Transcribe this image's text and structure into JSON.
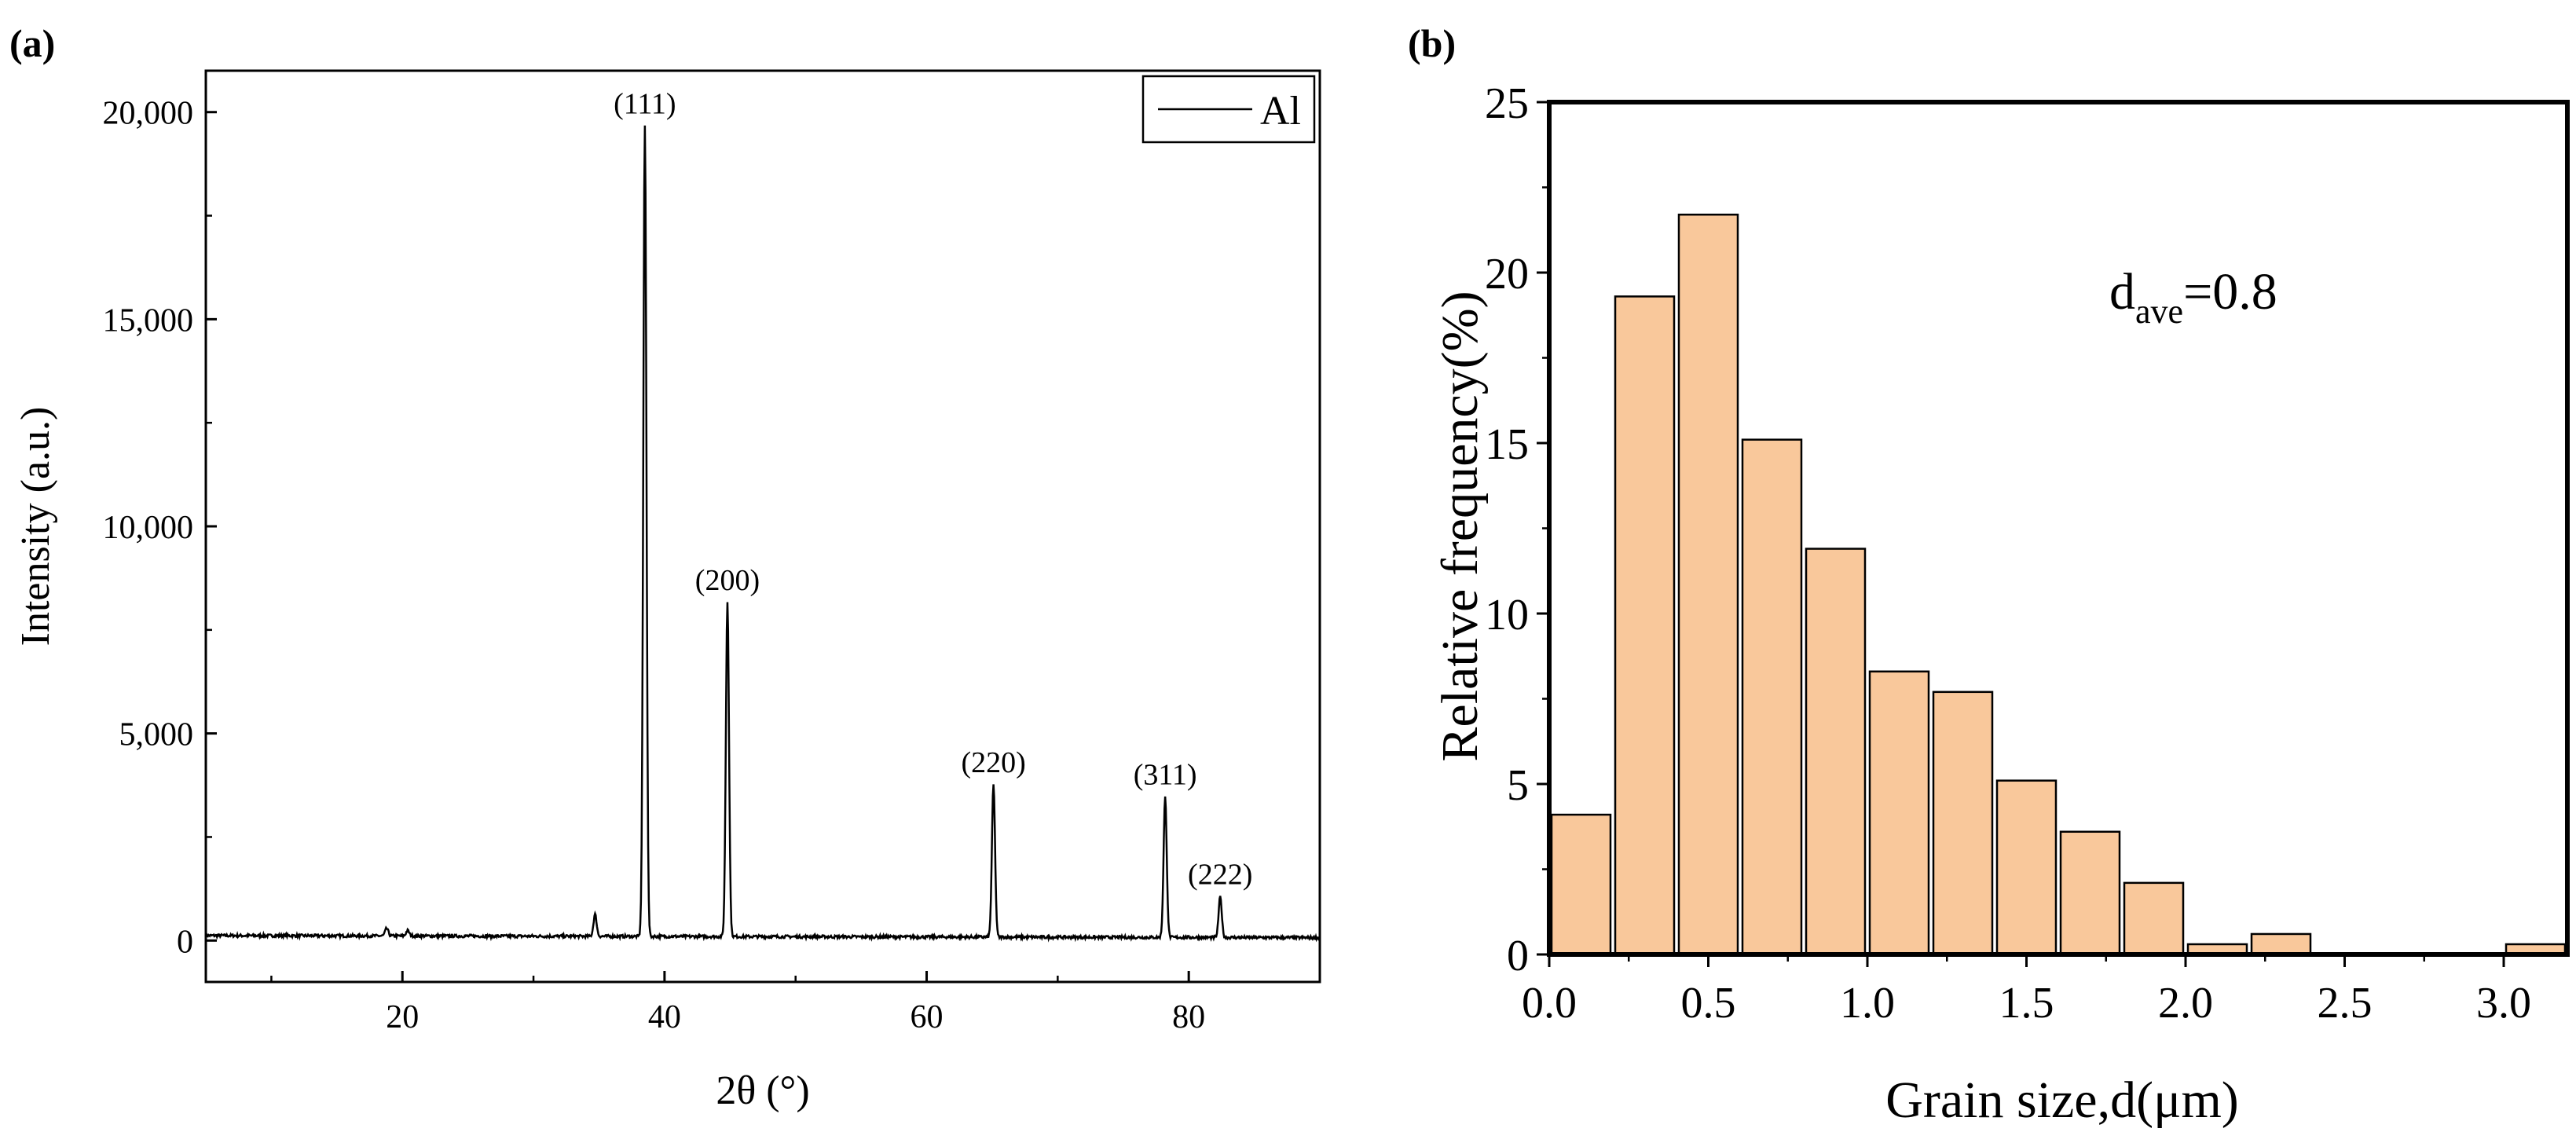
{
  "panel_a": {
    "label": "(a)",
    "chart_data": {
      "type": "line",
      "xlabel": "2θ (°)",
      "ylabel": "Intensity (a.u.)",
      "xlim": [
        5,
        90
      ],
      "ylim": [
        -1000,
        21000
      ],
      "xticks": [
        20,
        40,
        60,
        80
      ],
      "xtick_labels": [
        "20",
        "40",
        "60",
        "80"
      ],
      "yticks": [
        0,
        5000,
        10000,
        15000,
        20000
      ],
      "ytick_labels": [
        "0",
        "5,000",
        "10,000",
        "15,000",
        "20,000"
      ],
      "legend": {
        "entries": [
          "Al"
        ],
        "placement": "top-right"
      },
      "series": [
        {
          "name": "Al",
          "baseline": 120,
          "peaks": [
            {
              "x": 18.8,
              "y": 300
            },
            {
              "x": 20.4,
              "y": 250
            },
            {
              "x": 34.7,
              "y": 650
            },
            {
              "x": 38.5,
              "y": 19700,
              "label": "(111)"
            },
            {
              "x": 44.8,
              "y": 8200,
              "label": "(200)"
            },
            {
              "x": 65.1,
              "y": 3800,
              "label": "(220)"
            },
            {
              "x": 78.2,
              "y": 3500,
              "label": "(311)"
            },
            {
              "x": 82.4,
              "y": 1100,
              "label": "(222)"
            }
          ]
        }
      ]
    }
  },
  "panel_b": {
    "label": "(b)",
    "chart_data": {
      "type": "bar",
      "xlabel": "Grain size,d(μm)",
      "ylabel": "Relative frequency(%)",
      "xlim": [
        0.0,
        3.2
      ],
      "ylim": [
        0,
        25
      ],
      "xticks": [
        0.0,
        0.5,
        1.0,
        1.5,
        2.0,
        2.5,
        3.0
      ],
      "xtick_labels": [
        "0.0",
        "0.5",
        "1.0",
        "1.5",
        "2.0",
        "2.5",
        "3.0"
      ],
      "yticks": [
        0,
        5,
        10,
        15,
        20,
        25
      ],
      "ytick_labels": [
        "0",
        "5",
        "10",
        "15",
        "20",
        "25"
      ],
      "bin_width": 0.2,
      "bins": [
        {
          "x": 0.1,
          "value": 4.1
        },
        {
          "x": 0.3,
          "value": 19.3
        },
        {
          "x": 0.5,
          "value": 21.7
        },
        {
          "x": 0.7,
          "value": 15.1
        },
        {
          "x": 0.9,
          "value": 11.9
        },
        {
          "x": 1.1,
          "value": 8.3
        },
        {
          "x": 1.3,
          "value": 7.7
        },
        {
          "x": 1.5,
          "value": 5.1
        },
        {
          "x": 1.7,
          "value": 3.6
        },
        {
          "x": 1.9,
          "value": 2.1
        },
        {
          "x": 2.1,
          "value": 0.3
        },
        {
          "x": 2.3,
          "value": 0.6
        },
        {
          "x": 2.5,
          "value": 0
        },
        {
          "x": 2.7,
          "value": 0
        },
        {
          "x": 2.9,
          "value": 0
        },
        {
          "x": 3.1,
          "value": 0.3
        }
      ],
      "bar_color": "#f9c89b",
      "annotation": {
        "main": "d",
        "subscript": "ave",
        "suffix": "=0.8"
      }
    }
  }
}
